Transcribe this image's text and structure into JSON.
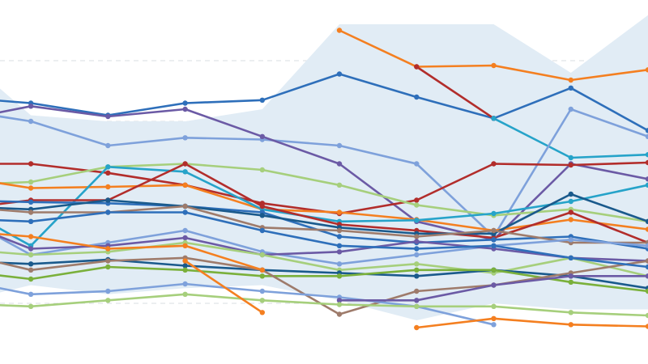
{
  "chart_data": {
    "type": "line",
    "title": "",
    "xlabel": "",
    "ylabel": "",
    "grid": true,
    "legend": "none",
    "x": [
      0,
      1,
      2,
      3,
      4,
      5,
      6,
      7,
      8,
      9
    ],
    "xlim": [
      0.6,
      9.0
    ],
    "ylim": [
      0,
      6.0
    ],
    "gridlines": [
      1,
      2,
      3,
      4,
      5
    ],
    "band": {
      "fill": "#e1ecf5",
      "upper": [
        5.2,
        4.1,
        4.0,
        4.0,
        4.2,
        5.6,
        5.6,
        5.6,
        4.8,
        5.75
      ],
      "lower": [
        1.0,
        1.3,
        1.15,
        1.25,
        1.3,
        1.05,
        0.72,
        1.0,
        0.9,
        0.9
      ]
    },
    "series": [
      {
        "color": "#f47f20",
        "values": [
          null,
          null,
          null,
          null,
          null,
          5.5,
          4.9,
          4.92,
          4.68,
          4.85
        ]
      },
      {
        "color": "#2e6fba",
        "values": [
          4.4,
          4.3,
          4.1,
          4.3,
          4.35,
          4.78,
          4.4,
          4.05,
          4.55,
          3.85
        ]
      },
      {
        "color": "#b22d2b",
        "values": [
          null,
          null,
          null,
          null,
          null,
          null,
          4.9,
          4.05,
          null,
          null
        ]
      },
      {
        "color": "#26a3c9",
        "values": [
          null,
          null,
          null,
          null,
          null,
          null,
          null,
          4.05,
          3.4,
          3.45
        ]
      },
      {
        "color": "#7ea1db",
        "values": [
          4.2,
          4.0,
          3.6,
          3.73,
          3.7,
          3.6,
          3.3,
          2.1,
          4.2,
          3.75
        ]
      },
      {
        "color": "#6b5aa5",
        "values": [
          4.0,
          4.25,
          4.08,
          4.2,
          3.75,
          3.3,
          2.35,
          2.05,
          3.3,
          3.05
        ]
      },
      {
        "color": "#b22d2b",
        "values": [
          3.3,
          3.3,
          3.15,
          2.95,
          2.65,
          2.48,
          2.7,
          3.3,
          3.28,
          3.32
        ]
      },
      {
        "color": "#a6cf7c",
        "values": [
          2.95,
          3.0,
          3.25,
          3.3,
          3.2,
          2.95,
          2.62,
          2.45,
          2.55,
          2.35
        ]
      },
      {
        "color": "#f47f20",
        "values": [
          3.1,
          2.9,
          2.92,
          2.95,
          2.55,
          2.5,
          2.38,
          2.2,
          2.38,
          2.22
        ]
      },
      {
        "color": "#26a3c9",
        "values": [
          2.65,
          1.95,
          3.25,
          3.17,
          2.55,
          2.35,
          2.37,
          2.48,
          2.68,
          2.95
        ]
      },
      {
        "color": "#b22d2b",
        "values": [
          2.55,
          2.7,
          2.7,
          3.3,
          2.6,
          2.3,
          2.2,
          2.08,
          2.5,
          2.0
        ]
      },
      {
        "color": "#2e6fba",
        "values": [
          2.7,
          2.67,
          2.65,
          2.6,
          2.5,
          2.1,
          2.0,
          2.05,
          2.1,
          1.9
        ]
      },
      {
        "color": "#1a5a8c",
        "values": [
          2.6,
          2.55,
          2.7,
          2.6,
          2.45,
          2.25,
          2.15,
          2.15,
          2.8,
          2.35
        ]
      },
      {
        "color": "#9e7b6b",
        "values": [
          2.6,
          2.5,
          2.5,
          2.6,
          2.25,
          2.2,
          2.1,
          2.2,
          2.0,
          2.0
        ]
      },
      {
        "color": "#7ea1db",
        "values": [
          2.5,
          1.8,
          2.0,
          2.2,
          1.85,
          1.65,
          1.8,
          1.95,
          2.05,
          1.95
        ]
      },
      {
        "color": "#6b5aa5",
        "values": [
          2.4,
          1.9,
          1.95,
          2.08,
          1.8,
          1.85,
          2.02,
          1.9,
          1.75,
          1.7
        ]
      },
      {
        "color": "#a6cf7c",
        "values": [
          1.9,
          1.8,
          1.85,
          2.0,
          1.8,
          1.55,
          1.65,
          1.5,
          1.75,
          1.45
        ]
      },
      {
        "color": "#1a5a8c",
        "values": [
          1.7,
          1.65,
          1.72,
          1.62,
          1.55,
          1.5,
          1.45,
          1.55,
          1.45,
          1.25
        ]
      },
      {
        "color": "#7ab03b",
        "values": [
          1.55,
          1.4,
          1.6,
          1.55,
          1.45,
          1.45,
          1.55,
          1.55,
          1.35,
          1.2
        ]
      },
      {
        "color": "#9e7b6b",
        "values": [
          1.85,
          1.55,
          1.7,
          1.75,
          1.55,
          0.82,
          1.2,
          1.3,
          1.5,
          1.7
        ]
      },
      {
        "color": "#7ea1db",
        "values": [
          1.4,
          1.15,
          1.2,
          1.32,
          1.2,
          1.1,
          0.95,
          0.65,
          null,
          null
        ]
      },
      {
        "color": "#6b5aa5",
        "values": [
          null,
          null,
          null,
          null,
          null,
          1.05,
          1.05,
          1.3,
          1.45,
          1.45
        ]
      },
      {
        "color": "#2e6fba",
        "values": [
          2.4,
          2.35,
          2.5,
          2.5,
          2.2,
          1.95,
          1.9,
          1.95,
          1.75,
          1.6
        ]
      },
      {
        "color": "#f47f20",
        "values": [
          2.2,
          2.1,
          1.9,
          1.95,
          1.55,
          null,
          null,
          null,
          null,
          null
        ]
      },
      {
        "color": "#a6cf7c",
        "values": [
          1.0,
          0.95,
          1.05,
          1.15,
          1.05,
          0.98,
          0.95,
          0.95,
          0.85,
          0.8
        ]
      },
      {
        "color": "#f47f20",
        "values": [
          null,
          null,
          null,
          1.7,
          0.85,
          null,
          0.6,
          0.75,
          0.65,
          0.62
        ]
      }
    ]
  }
}
